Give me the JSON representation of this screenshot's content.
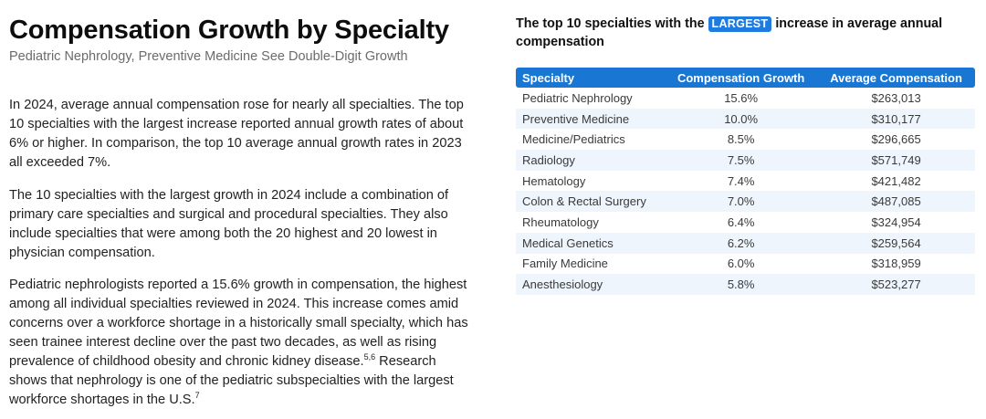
{
  "article": {
    "title": "Compensation Growth by Specialty",
    "subtitle": "Pediatric Nephrology, Preventive Medicine See Double-Digit Growth",
    "paragraph1": "In 2024, average annual compensation rose for nearly all specialties. The top 10 specialties with the largest increase reported annual growth rates of about 6% or higher. In comparison, the top 10 average annual growth rates in 2023 all exceeded 7%.",
    "paragraph2": "The 10 specialties with the largest growth in 2024 include a combination of primary care specialties and surgical and procedural specialties. They also include specialties that were among both the 20 highest and 20 lowest in physician compensation.",
    "paragraph3_part1": "Pediatric nephrologists reported a 15.6% growth in compensation, the highest among all individual specialties reviewed in 2024. This increase comes amid concerns over a workforce shortage in a historically small specialty, which has seen trainee interest decline over the past two decades, as well as rising prevalence of childhood obesity and chronic kidney disease.",
    "footnote_a": "5,6",
    "paragraph3_part2": " Research shows that nephrology is one of the pediatric subspecialties with the largest workforce shortages in the U.S.",
    "footnote_b": "7"
  },
  "table_section": {
    "caption_before": "The top 10 specialties with the ",
    "caption_badge": "LARGEST",
    "caption_after": " increase in average annual compensation",
    "headers": [
      "Specialty",
      "Compensation Growth",
      "Average Compensation"
    ],
    "rows": [
      {
        "specialty": "Pediatric Nephrology",
        "growth": "15.6%",
        "avg": "$263,013"
      },
      {
        "specialty": "Preventive Medicine",
        "growth": "10.0%",
        "avg": "$310,177"
      },
      {
        "specialty": "Medicine/Pediatrics",
        "growth": "8.5%",
        "avg": "$296,665"
      },
      {
        "specialty": "Radiology",
        "growth": "7.5%",
        "avg": "$571,749"
      },
      {
        "specialty": "Hematology",
        "growth": "7.4%",
        "avg": "$421,482"
      },
      {
        "specialty": "Colon & Rectal Surgery",
        "growth": "7.0%",
        "avg": "$487,085"
      },
      {
        "specialty": "Rheumatology",
        "growth": "6.4%",
        "avg": "$324,954"
      },
      {
        "specialty": "Medical Genetics",
        "growth": "6.2%",
        "avg": "$259,564"
      },
      {
        "specialty": "Family Medicine",
        "growth": "6.0%",
        "avg": "$318,959"
      },
      {
        "specialty": "Anesthesiology",
        "growth": "5.8%",
        "avg": "$523,277"
      }
    ]
  },
  "colors": {
    "header_blue": "#1976d2",
    "badge_blue": "#1e7be0",
    "row_stripe": "#eef5fd"
  }
}
